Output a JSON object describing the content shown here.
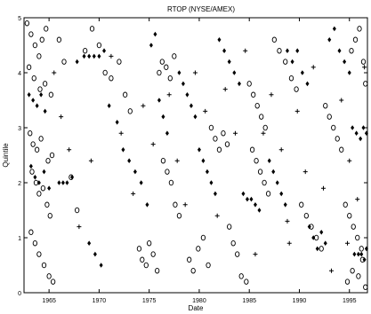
{
  "chart_data": {
    "type": "scatter",
    "title": "RTOP (NYSE/AMEX)",
    "xlabel": "Date",
    "ylabel": "Quintile",
    "xlim": [
      1962.5,
      1996.8
    ],
    "ylim": [
      0,
      5
    ],
    "x_ticks": [
      {
        "label": "1965",
        "value": 1965
      },
      {
        "label": "1970",
        "value": 1970
      },
      {
        "label": "1975",
        "value": 1975
      },
      {
        "label": "1980",
        "value": 1980
      },
      {
        "label": "1985",
        "value": 1985
      },
      {
        "label": "1990",
        "value": 1990
      },
      {
        "label": "1995",
        "value": 1995
      }
    ],
    "y_ticks": [
      {
        "label": "0",
        "value": 0
      },
      {
        "label": "1",
        "value": 1
      },
      {
        "label": "2",
        "value": 2
      },
      {
        "label": "3",
        "value": 3
      },
      {
        "label": "4",
        "value": 4
      },
      {
        "label": "5",
        "value": 5
      }
    ],
    "grid": false,
    "series": [
      {
        "marker": "open-circle",
        "points": [
          [
            1962.8,
            4.9
          ],
          [
            1963.2,
            4.7
          ],
          [
            1963.6,
            4.5
          ],
          [
            1964.0,
            4.3
          ],
          [
            1964.3,
            4.6
          ],
          [
            1964.7,
            4.8
          ],
          [
            1963.0,
            4.1
          ],
          [
            1963.5,
            3.9
          ],
          [
            1964.1,
            3.7
          ],
          [
            1964.6,
            3.8
          ],
          [
            1965.2,
            3.6
          ],
          [
            1963.1,
            2.9
          ],
          [
            1963.4,
            2.7
          ],
          [
            1963.8,
            2.6
          ],
          [
            1964.2,
            2.8
          ],
          [
            1964.9,
            2.4
          ],
          [
            1965.3,
            2.5
          ],
          [
            1963.3,
            2.2
          ],
          [
            1963.7,
            2.0
          ],
          [
            1964.0,
            1.8
          ],
          [
            1964.4,
            1.9
          ],
          [
            1964.8,
            1.6
          ],
          [
            1965.1,
            1.4
          ],
          [
            1963.2,
            1.1
          ],
          [
            1963.6,
            0.9
          ],
          [
            1964.0,
            0.7
          ],
          [
            1964.5,
            0.5
          ],
          [
            1965.0,
            0.3
          ],
          [
            1965.4,
            0.2
          ],
          [
            1966.0,
            4.6
          ],
          [
            1966.5,
            4.2
          ],
          [
            1967.2,
            2.1
          ],
          [
            1967.8,
            1.5
          ],
          [
            1968.6,
            4.4
          ],
          [
            1969.3,
            4.8
          ],
          [
            1970.0,
            4.5
          ],
          [
            1970.6,
            4.0
          ],
          [
            1971.2,
            3.9
          ],
          [
            1972.0,
            4.2
          ],
          [
            1972.6,
            3.6
          ],
          [
            1973.1,
            3.3
          ],
          [
            1974.0,
            0.8
          ],
          [
            1974.3,
            0.6
          ],
          [
            1974.7,
            0.5
          ],
          [
            1975.0,
            0.9
          ],
          [
            1975.4,
            0.7
          ],
          [
            1975.8,
            0.4
          ],
          [
            1976.0,
            4.0
          ],
          [
            1976.3,
            4.2
          ],
          [
            1976.7,
            4.1
          ],
          [
            1977.1,
            3.9
          ],
          [
            1977.5,
            4.3
          ],
          [
            1976.4,
            2.4
          ],
          [
            1976.8,
            2.2
          ],
          [
            1977.2,
            2.0
          ],
          [
            1977.6,
            1.6
          ],
          [
            1978.0,
            1.4
          ],
          [
            1979.0,
            0.6
          ],
          [
            1979.4,
            0.4
          ],
          [
            1979.9,
            0.8
          ],
          [
            1980.4,
            1.0
          ],
          [
            1980.9,
            0.5
          ],
          [
            1981.2,
            3.0
          ],
          [
            1981.6,
            2.8
          ],
          [
            1982.0,
            2.6
          ],
          [
            1982.4,
            2.9
          ],
          [
            1982.8,
            2.7
          ],
          [
            1983.0,
            1.2
          ],
          [
            1983.4,
            0.9
          ],
          [
            1983.8,
            0.7
          ],
          [
            1984.2,
            0.3
          ],
          [
            1984.7,
            0.2
          ],
          [
            1985.0,
            3.8
          ],
          [
            1985.4,
            3.6
          ],
          [
            1985.8,
            3.4
          ],
          [
            1986.2,
            3.2
          ],
          [
            1986.6,
            3.0
          ],
          [
            1985.3,
            2.6
          ],
          [
            1985.7,
            2.4
          ],
          [
            1986.1,
            2.2
          ],
          [
            1986.5,
            2.0
          ],
          [
            1986.9,
            1.8
          ],
          [
            1987.5,
            4.6
          ],
          [
            1988.0,
            4.4
          ],
          [
            1988.6,
            4.2
          ],
          [
            1989.2,
            3.9
          ],
          [
            1989.7,
            3.7
          ],
          [
            1990.2,
            1.6
          ],
          [
            1990.7,
            1.4
          ],
          [
            1991.2,
            1.2
          ],
          [
            1991.7,
            1.0
          ],
          [
            1992.2,
            0.8
          ],
          [
            1992.6,
            3.4
          ],
          [
            1993.0,
            3.2
          ],
          [
            1993.4,
            3.0
          ],
          [
            1993.8,
            2.8
          ],
          [
            1994.2,
            2.6
          ],
          [
            1994.6,
            1.6
          ],
          [
            1995.0,
            1.4
          ],
          [
            1995.4,
            1.2
          ],
          [
            1995.8,
            1.0
          ],
          [
            1996.2,
            0.8
          ],
          [
            1995.2,
            4.4
          ],
          [
            1995.6,
            4.6
          ],
          [
            1996.0,
            4.8
          ],
          [
            1996.4,
            4.2
          ],
          [
            1996.6,
            3.8
          ],
          [
            1994.8,
            0.2
          ],
          [
            1995.3,
            0.4
          ],
          [
            1995.9,
            0.3
          ],
          [
            1996.3,
            0.6
          ],
          [
            1996.6,
            0.1
          ]
        ]
      },
      {
        "marker": "filled-diamond",
        "points": [
          [
            1963.0,
            3.6
          ],
          [
            1963.4,
            3.5
          ],
          [
            1963.8,
            3.4
          ],
          [
            1964.2,
            3.6
          ],
          [
            1964.6,
            3.3
          ],
          [
            1963.2,
            2.3
          ],
          [
            1963.6,
            2.1
          ],
          [
            1964.0,
            2.0
          ],
          [
            1964.5,
            2.2
          ],
          [
            1965.0,
            1.9
          ],
          [
            1966.0,
            2.0
          ],
          [
            1966.4,
            2.0
          ],
          [
            1966.8,
            2.0
          ],
          [
            1967.3,
            2.1
          ],
          [
            1967.8,
            4.2
          ],
          [
            1968.5,
            4.3
          ],
          [
            1969.0,
            4.3
          ],
          [
            1969.5,
            4.3
          ],
          [
            1970.0,
            4.3
          ],
          [
            1970.5,
            4.4
          ],
          [
            1969.0,
            0.9
          ],
          [
            1969.6,
            0.7
          ],
          [
            1970.2,
            0.5
          ],
          [
            1971.0,
            3.4
          ],
          [
            1971.8,
            3.1
          ],
          [
            1972.4,
            2.6
          ],
          [
            1973.0,
            2.4
          ],
          [
            1973.6,
            2.2
          ],
          [
            1974.2,
            2.0
          ],
          [
            1974.8,
            1.6
          ],
          [
            1975.2,
            4.5
          ],
          [
            1975.6,
            4.7
          ],
          [
            1976.0,
            3.5
          ],
          [
            1976.4,
            3.2
          ],
          [
            1976.8,
            2.9
          ],
          [
            1978.0,
            4.0
          ],
          [
            1978.4,
            3.8
          ],
          [
            1978.8,
            3.6
          ],
          [
            1979.2,
            3.4
          ],
          [
            1979.6,
            3.2
          ],
          [
            1980.0,
            2.6
          ],
          [
            1980.4,
            2.4
          ],
          [
            1980.8,
            2.2
          ],
          [
            1981.2,
            2.0
          ],
          [
            1981.6,
            1.8
          ],
          [
            1982.0,
            4.6
          ],
          [
            1982.5,
            4.4
          ],
          [
            1983.0,
            4.2
          ],
          [
            1983.5,
            4.0
          ],
          [
            1984.0,
            3.8
          ],
          [
            1984.4,
            1.8
          ],
          [
            1984.8,
            1.7
          ],
          [
            1985.2,
            1.7
          ],
          [
            1985.6,
            1.6
          ],
          [
            1986.0,
            1.5
          ],
          [
            1987.0,
            2.4
          ],
          [
            1987.4,
            2.2
          ],
          [
            1987.8,
            2.0
          ],
          [
            1988.2,
            1.8
          ],
          [
            1988.6,
            1.6
          ],
          [
            1988.8,
            4.4
          ],
          [
            1989.3,
            4.2
          ],
          [
            1989.8,
            4.4
          ],
          [
            1990.3,
            4.0
          ],
          [
            1990.8,
            3.8
          ],
          [
            1991.0,
            1.2
          ],
          [
            1991.4,
            1.0
          ],
          [
            1991.8,
            0.8
          ],
          [
            1992.2,
            1.1
          ],
          [
            1992.6,
            0.9
          ],
          [
            1993.0,
            4.6
          ],
          [
            1993.5,
            4.8
          ],
          [
            1994.0,
            4.4
          ],
          [
            1994.5,
            4.2
          ],
          [
            1995.0,
            4.0
          ],
          [
            1995.3,
            3.0
          ],
          [
            1995.7,
            2.9
          ],
          [
            1996.1,
            2.8
          ],
          [
            1996.4,
            3.0
          ],
          [
            1996.7,
            2.9
          ],
          [
            1995.5,
            0.7
          ],
          [
            1995.9,
            0.7
          ],
          [
            1996.2,
            0.7
          ],
          [
            1996.5,
            0.6
          ],
          [
            1996.7,
            0.8
          ]
        ]
      },
      {
        "marker": "plus",
        "points": [
          [
            1965.5,
            4.0
          ],
          [
            1966.2,
            3.2
          ],
          [
            1967.0,
            2.6
          ],
          [
            1968.0,
            1.2
          ],
          [
            1969.2,
            2.4
          ],
          [
            1971.2,
            4.3
          ],
          [
            1972.2,
            2.9
          ],
          [
            1973.4,
            1.8
          ],
          [
            1974.4,
            3.4
          ],
          [
            1975.4,
            2.7
          ],
          [
            1977.0,
            3.6
          ],
          [
            1977.8,
            2.4
          ],
          [
            1978.6,
            1.6
          ],
          [
            1979.6,
            4.0
          ],
          [
            1980.6,
            3.3
          ],
          [
            1981.8,
            1.4
          ],
          [
            1982.6,
            3.7
          ],
          [
            1983.6,
            2.9
          ],
          [
            1984.6,
            4.4
          ],
          [
            1985.6,
            0.7
          ],
          [
            1986.4,
            2.9
          ],
          [
            1987.2,
            3.6
          ],
          [
            1988.2,
            2.6
          ],
          [
            1989.0,
            0.9
          ],
          [
            1989.8,
            3.3
          ],
          [
            1990.6,
            2.2
          ],
          [
            1991.4,
            4.1
          ],
          [
            1992.4,
            1.9
          ],
          [
            1993.2,
            0.4
          ],
          [
            1994.2,
            3.5
          ],
          [
            1995.0,
            2.4
          ],
          [
            1995.8,
            1.7
          ],
          [
            1996.5,
            4.1
          ],
          [
            1994.8,
            0.9
          ],
          [
            1988.8,
            1.3
          ]
        ]
      }
    ]
  }
}
